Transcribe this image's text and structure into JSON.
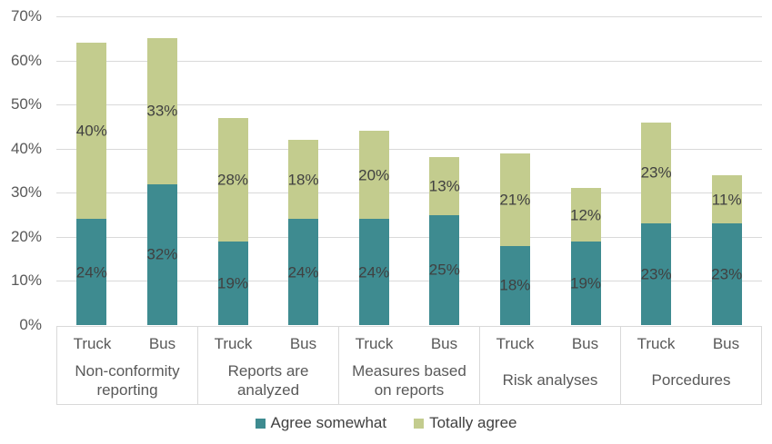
{
  "chart_data": {
    "type": "bar",
    "stacked": true,
    "grid": true,
    "legend_position": "bottom",
    "y_axis": {
      "min": 0,
      "max": 70,
      "step": 10,
      "ticks": [
        "0%",
        "10%",
        "20%",
        "30%",
        "40%",
        "50%",
        "60%",
        "70%"
      ]
    },
    "series": [
      {
        "key": "agree_somewhat",
        "name": "Agree somewhat",
        "color": "#3E8B90"
      },
      {
        "key": "totally_agree",
        "name": "Totally agree",
        "color": "#C3CC8E"
      }
    ],
    "groups": [
      {
        "label": "Non-conformity reporting",
        "bars": [
          {
            "label": "Truck",
            "values": {
              "agree_somewhat": 24,
              "totally_agree": 40
            }
          },
          {
            "label": "Bus",
            "values": {
              "agree_somewhat": 32,
              "totally_agree": 33
            }
          }
        ]
      },
      {
        "label": "Reports are analyzed",
        "bars": [
          {
            "label": "Truck",
            "values": {
              "agree_somewhat": 19,
              "totally_agree": 28
            }
          },
          {
            "label": "Bus",
            "values": {
              "agree_somewhat": 24,
              "totally_agree": 18
            }
          }
        ]
      },
      {
        "label": "Measures based on reports",
        "bars": [
          {
            "label": "Truck",
            "values": {
              "agree_somewhat": 24,
              "totally_agree": 20
            }
          },
          {
            "label": "Bus",
            "values": {
              "agree_somewhat": 25,
              "totally_agree": 13
            }
          }
        ]
      },
      {
        "label": "Risk analyses",
        "bars": [
          {
            "label": "Truck",
            "values": {
              "agree_somewhat": 18,
              "totally_agree": 21
            }
          },
          {
            "label": "Bus",
            "values": {
              "agree_somewhat": 19,
              "totally_agree": 12
            }
          }
        ]
      },
      {
        "label": "Porcedures",
        "bars": [
          {
            "label": "Truck",
            "values": {
              "agree_somewhat": 23,
              "totally_agree": 23
            }
          },
          {
            "label": "Bus",
            "values": {
              "agree_somewhat": 23,
              "totally_agree": 11
            }
          }
        ]
      }
    ],
    "data_label_suffix": "%"
  },
  "colors": {
    "agree_somewhat": "#3E8B90",
    "totally_agree": "#C3CC8E",
    "gridline": "#D9D9D9",
    "axis_text": "#595959",
    "data_label_text": "#404040",
    "background": "#FFFFFF"
  }
}
